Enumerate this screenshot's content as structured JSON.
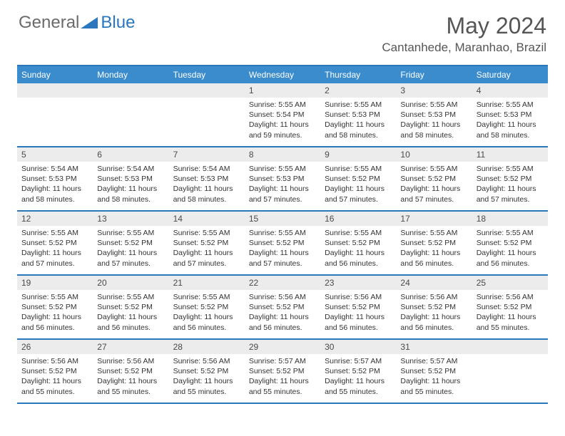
{
  "logo": {
    "word1": "General",
    "word2": "Blue"
  },
  "title": "May 2024",
  "location": "Cantanhede, Maranhao, Brazil",
  "colors": {
    "header_bar": "#3b8ccc",
    "border": "#2b77bd",
    "daynum_bg": "#ececec",
    "text_dark": "#333333",
    "text_grey": "#555555"
  },
  "days_of_week": [
    "Sunday",
    "Monday",
    "Tuesday",
    "Wednesday",
    "Thursday",
    "Friday",
    "Saturday"
  ],
  "weeks": [
    [
      {
        "n": "",
        "sr": "",
        "ss": "",
        "dl": ""
      },
      {
        "n": "",
        "sr": "",
        "ss": "",
        "dl": ""
      },
      {
        "n": "",
        "sr": "",
        "ss": "",
        "dl": ""
      },
      {
        "n": "1",
        "sr": "5:55 AM",
        "ss": "5:54 PM",
        "dl": "11 hours and 59 minutes."
      },
      {
        "n": "2",
        "sr": "5:55 AM",
        "ss": "5:53 PM",
        "dl": "11 hours and 58 minutes."
      },
      {
        "n": "3",
        "sr": "5:55 AM",
        "ss": "5:53 PM",
        "dl": "11 hours and 58 minutes."
      },
      {
        "n": "4",
        "sr": "5:55 AM",
        "ss": "5:53 PM",
        "dl": "11 hours and 58 minutes."
      }
    ],
    [
      {
        "n": "5",
        "sr": "5:54 AM",
        "ss": "5:53 PM",
        "dl": "11 hours and 58 minutes."
      },
      {
        "n": "6",
        "sr": "5:54 AM",
        "ss": "5:53 PM",
        "dl": "11 hours and 58 minutes."
      },
      {
        "n": "7",
        "sr": "5:54 AM",
        "ss": "5:53 PM",
        "dl": "11 hours and 58 minutes."
      },
      {
        "n": "8",
        "sr": "5:55 AM",
        "ss": "5:53 PM",
        "dl": "11 hours and 57 minutes."
      },
      {
        "n": "9",
        "sr": "5:55 AM",
        "ss": "5:52 PM",
        "dl": "11 hours and 57 minutes."
      },
      {
        "n": "10",
        "sr": "5:55 AM",
        "ss": "5:52 PM",
        "dl": "11 hours and 57 minutes."
      },
      {
        "n": "11",
        "sr": "5:55 AM",
        "ss": "5:52 PM",
        "dl": "11 hours and 57 minutes."
      }
    ],
    [
      {
        "n": "12",
        "sr": "5:55 AM",
        "ss": "5:52 PM",
        "dl": "11 hours and 57 minutes."
      },
      {
        "n": "13",
        "sr": "5:55 AM",
        "ss": "5:52 PM",
        "dl": "11 hours and 57 minutes."
      },
      {
        "n": "14",
        "sr": "5:55 AM",
        "ss": "5:52 PM",
        "dl": "11 hours and 57 minutes."
      },
      {
        "n": "15",
        "sr": "5:55 AM",
        "ss": "5:52 PM",
        "dl": "11 hours and 57 minutes."
      },
      {
        "n": "16",
        "sr": "5:55 AM",
        "ss": "5:52 PM",
        "dl": "11 hours and 56 minutes."
      },
      {
        "n": "17",
        "sr": "5:55 AM",
        "ss": "5:52 PM",
        "dl": "11 hours and 56 minutes."
      },
      {
        "n": "18",
        "sr": "5:55 AM",
        "ss": "5:52 PM",
        "dl": "11 hours and 56 minutes."
      }
    ],
    [
      {
        "n": "19",
        "sr": "5:55 AM",
        "ss": "5:52 PM",
        "dl": "11 hours and 56 minutes."
      },
      {
        "n": "20",
        "sr": "5:55 AM",
        "ss": "5:52 PM",
        "dl": "11 hours and 56 minutes."
      },
      {
        "n": "21",
        "sr": "5:55 AM",
        "ss": "5:52 PM",
        "dl": "11 hours and 56 minutes."
      },
      {
        "n": "22",
        "sr": "5:56 AM",
        "ss": "5:52 PM",
        "dl": "11 hours and 56 minutes."
      },
      {
        "n": "23",
        "sr": "5:56 AM",
        "ss": "5:52 PM",
        "dl": "11 hours and 56 minutes."
      },
      {
        "n": "24",
        "sr": "5:56 AM",
        "ss": "5:52 PM",
        "dl": "11 hours and 56 minutes."
      },
      {
        "n": "25",
        "sr": "5:56 AM",
        "ss": "5:52 PM",
        "dl": "11 hours and 55 minutes."
      }
    ],
    [
      {
        "n": "26",
        "sr": "5:56 AM",
        "ss": "5:52 PM",
        "dl": "11 hours and 55 minutes."
      },
      {
        "n": "27",
        "sr": "5:56 AM",
        "ss": "5:52 PM",
        "dl": "11 hours and 55 minutes."
      },
      {
        "n": "28",
        "sr": "5:56 AM",
        "ss": "5:52 PM",
        "dl": "11 hours and 55 minutes."
      },
      {
        "n": "29",
        "sr": "5:57 AM",
        "ss": "5:52 PM",
        "dl": "11 hours and 55 minutes."
      },
      {
        "n": "30",
        "sr": "5:57 AM",
        "ss": "5:52 PM",
        "dl": "11 hours and 55 minutes."
      },
      {
        "n": "31",
        "sr": "5:57 AM",
        "ss": "5:52 PM",
        "dl": "11 hours and 55 minutes."
      },
      {
        "n": "",
        "sr": "",
        "ss": "",
        "dl": ""
      }
    ]
  ],
  "labels": {
    "sunrise": "Sunrise:",
    "sunset": "Sunset:",
    "daylight": "Daylight:"
  }
}
